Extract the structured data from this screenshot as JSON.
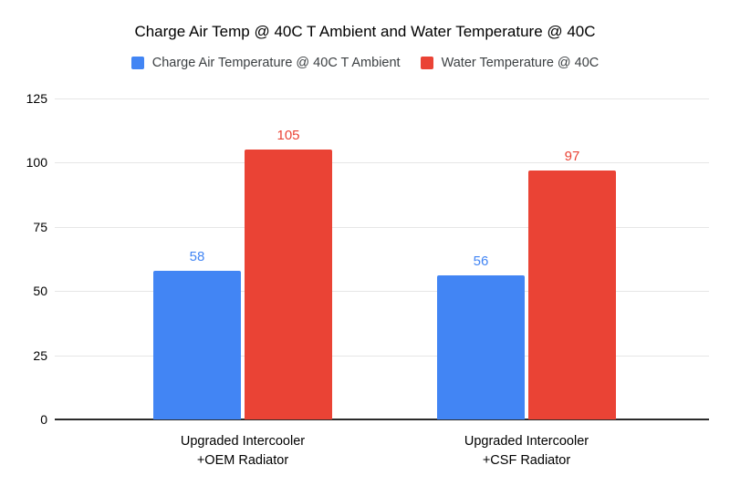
{
  "chart_data": {
    "type": "bar",
    "title": "Charge Air Temp @ 40C T Ambient and Water Temperature @ 40C",
    "categories": [
      "Upgraded Intercooler\n+OEM Radiator",
      "Upgraded Intercooler\n+CSF Radiator"
    ],
    "series": [
      {
        "name": "Charge Air Temperature @ 40C T Ambient",
        "color": "#4285F4",
        "values": [
          58,
          56
        ]
      },
      {
        "name": "Water Temperature @ 40C",
        "color": "#EA4335",
        "values": [
          105,
          97
        ]
      }
    ],
    "yticks": [
      0,
      25,
      50,
      75,
      100,
      125
    ],
    "ylim": [
      0,
      125
    ],
    "xlabel": "",
    "ylabel": "",
    "grid": true,
    "legend_position": "top",
    "value_labels": true,
    "colors": {
      "background": "#ffffff",
      "gridline": "#e6e6e6",
      "baseline": "#2b2b2b",
      "title_text": "#000000",
      "axis_text": "#000000",
      "legend_text": "#3c4043"
    }
  }
}
